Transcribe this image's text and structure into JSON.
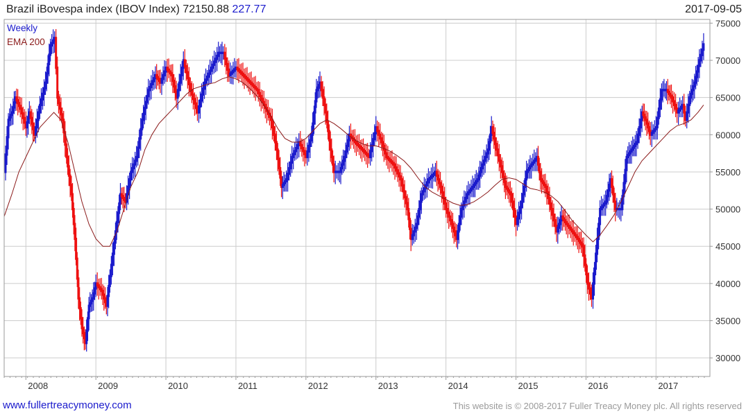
{
  "header": {
    "title": "Brazil iBovespa index (IBOV Index)",
    "last_value": "72150.88",
    "change": "227.77",
    "date": "2017-09-05"
  },
  "footer": {
    "site": "www.fullertreacymoney.com",
    "copyright": "This website is © 2008-2017 Fuller Treacy Money plc. All rights reserved"
  },
  "colors": {
    "up": "#1a1acc",
    "down": "#ee1111",
    "ema": "#8b1a1a",
    "grid": "#cccccc",
    "frame": "#999999",
    "text": "#333333"
  },
  "chart_data": {
    "type": "line",
    "legend": [
      {
        "name": "Weekly",
        "color": "#1a1acc"
      },
      {
        "name": "EMA 200",
        "color": "#8b1a1a"
      }
    ],
    "legend_position": "top-left",
    "x_domain": [
      2007.69,
      2017.77
    ],
    "ylim": [
      27500,
      75500
    ],
    "y_ticks": [
      30000,
      35000,
      40000,
      45000,
      50000,
      55000,
      60000,
      65000,
      70000,
      75000
    ],
    "x_ticks": [
      {
        "label": "2008",
        "value": 2008
      },
      {
        "label": "2009",
        "value": 2009
      },
      {
        "label": "2010",
        "value": 2010
      },
      {
        "label": "2011",
        "value": 2011
      },
      {
        "label": "2012",
        "value": 2012
      },
      {
        "label": "2013",
        "value": 2013
      },
      {
        "label": "2014",
        "value": 2014
      },
      {
        "label": "2015",
        "value": 2015
      },
      {
        "label": "2016",
        "value": 2016
      },
      {
        "label": "2017",
        "value": 2017
      }
    ],
    "grid": true,
    "series": [
      {
        "name": "Weekly",
        "x": [
          2007.69,
          2007.75,
          2007.8,
          2007.85,
          2007.92,
          2008.0,
          2008.05,
          2008.12,
          2008.2,
          2008.28,
          2008.35,
          2008.41,
          2008.45,
          2008.52,
          2008.58,
          2008.65,
          2008.7,
          2008.75,
          2008.8,
          2008.85,
          2008.9,
          2008.95,
          2009.0,
          2009.08,
          2009.15,
          2009.2,
          2009.28,
          2009.35,
          2009.42,
          2009.5,
          2009.58,
          2009.66,
          2009.75,
          2009.85,
          2009.92,
          2010.0,
          2010.08,
          2010.15,
          2010.25,
          2010.35,
          2010.45,
          2010.55,
          2010.65,
          2010.75,
          2010.82,
          2010.9,
          2011.0,
          2011.1,
          2011.2,
          2011.3,
          2011.4,
          2011.5,
          2011.58,
          2011.65,
          2011.72,
          2011.8,
          2011.9,
          2012.0,
          2012.08,
          2012.15,
          2012.2,
          2012.28,
          2012.35,
          2012.4,
          2012.48,
          2012.55,
          2012.62,
          2012.7,
          2012.8,
          2012.9,
          2013.0,
          2013.08,
          2013.15,
          2013.25,
          2013.35,
          2013.45,
          2013.5,
          2013.58,
          2013.65,
          2013.75,
          2013.85,
          2013.92,
          2014.0,
          2014.08,
          2014.15,
          2014.22,
          2014.3,
          2014.38,
          2014.45,
          2014.52,
          2014.6,
          2014.65,
          2014.72,
          2014.8,
          2014.85,
          2014.92,
          2015.0,
          2015.08,
          2015.15,
          2015.22,
          2015.3,
          2015.35,
          2015.42,
          2015.5,
          2015.58,
          2015.65,
          2015.72,
          2015.8,
          2015.88,
          2015.95,
          2016.02,
          2016.08,
          2016.12,
          2016.2,
          2016.28,
          2016.35,
          2016.42,
          2016.5,
          2016.58,
          2016.65,
          2016.72,
          2016.8,
          2016.85,
          2016.92,
          2017.0,
          2017.08,
          2017.15,
          2017.22,
          2017.3,
          2017.38,
          2017.42,
          2017.48,
          2017.55,
          2017.62,
          2017.68
        ],
        "y": [
          55000,
          62000,
          63000,
          65000,
          63500,
          61000,
          63000,
          60000,
          64000,
          67000,
          72000,
          73000,
          65000,
          62000,
          57000,
          52000,
          46000,
          38000,
          34000,
          32000,
          37000,
          38000,
          40000,
          39000,
          37000,
          41000,
          47000,
          52000,
          51000,
          55000,
          57000,
          62000,
          66000,
          68000,
          67000,
          69000,
          68000,
          65000,
          70000,
          66000,
          63000,
          67000,
          69000,
          71000,
          71000,
          68000,
          69000,
          68000,
          67000,
          66000,
          64000,
          62000,
          58000,
          53000,
          54000,
          57000,
          59000,
          57000,
          60000,
          66000,
          67000,
          63000,
          58000,
          55000,
          55000,
          57000,
          60000,
          59000,
          58000,
          57000,
          61000,
          59000,
          57000,
          56000,
          54000,
          50000,
          46000,
          48000,
          52000,
          54000,
          55000,
          53000,
          50000,
          48000,
          46000,
          50000,
          52000,
          53000,
          54000,
          56000,
          58000,
          61000,
          58000,
          55000,
          53000,
          52000,
          48000,
          51000,
          55000,
          56000,
          57000,
          54000,
          53000,
          50000,
          47000,
          49000,
          48000,
          47000,
          46000,
          45000,
          40000,
          38000,
          42000,
          50000,
          51000,
          54000,
          50000,
          50000,
          57000,
          58000,
          59000,
          63000,
          62000,
          60000,
          61000,
          66000,
          66000,
          65000,
          63000,
          64000,
          62000,
          65000,
          67000,
          70000,
          72150
        ]
      },
      {
        "name": "EMA 200",
        "x": [
          2007.69,
          2007.8,
          2007.9,
          2008.0,
          2008.1,
          2008.2,
          2008.3,
          2008.4,
          2008.5,
          2008.6,
          2008.7,
          2008.8,
          2008.9,
          2009.0,
          2009.1,
          2009.2,
          2009.3,
          2009.4,
          2009.5,
          2009.6,
          2009.7,
          2009.8,
          2009.9,
          2010.0,
          2010.1,
          2010.2,
          2010.3,
          2010.4,
          2010.5,
          2010.6,
          2010.7,
          2010.8,
          2010.9,
          2011.0,
          2011.1,
          2011.2,
          2011.3,
          2011.4,
          2011.5,
          2011.6,
          2011.7,
          2011.8,
          2011.9,
          2012.0,
          2012.1,
          2012.2,
          2012.3,
          2012.4,
          2012.5,
          2012.6,
          2012.7,
          2012.8,
          2012.9,
          2013.0,
          2013.1,
          2013.2,
          2013.3,
          2013.4,
          2013.5,
          2013.6,
          2013.7,
          2013.8,
          2013.9,
          2014.0,
          2014.1,
          2014.2,
          2014.3,
          2014.4,
          2014.5,
          2014.6,
          2014.7,
          2014.8,
          2014.9,
          2015.0,
          2015.1,
          2015.2,
          2015.3,
          2015.4,
          2015.5,
          2015.6,
          2015.7,
          2015.8,
          2015.9,
          2016.0,
          2016.1,
          2016.2,
          2016.3,
          2016.4,
          2016.5,
          2016.6,
          2016.7,
          2016.8,
          2016.9,
          2017.0,
          2017.1,
          2017.2,
          2017.3,
          2017.4,
          2017.5,
          2017.6,
          2017.68
        ],
        "y": [
          49000,
          52000,
          55000,
          57000,
          59000,
          61000,
          62000,
          63000,
          62000,
          59000,
          55000,
          51000,
          48000,
          46000,
          45000,
          45000,
          47000,
          50000,
          53000,
          55000,
          58000,
          60000,
          61500,
          62500,
          63500,
          64500,
          65500,
          66200,
          66500,
          66800,
          67000,
          67500,
          67800,
          67500,
          67000,
          66200,
          65200,
          64000,
          62500,
          60800,
          59500,
          59000,
          59000,
          59500,
          60500,
          61500,
          62000,
          61500,
          60800,
          60000,
          59300,
          58800,
          58500,
          58500,
          58200,
          57800,
          57200,
          56500,
          55500,
          54200,
          53000,
          52300,
          51800,
          51300,
          50800,
          50500,
          50600,
          51000,
          51600,
          52300,
          53200,
          54000,
          54200,
          54000,
          53400,
          52800,
          52600,
          52300,
          51800,
          51000,
          49800,
          48500,
          47500,
          46500,
          45600,
          46500,
          47800,
          49200,
          51000,
          53000,
          55000,
          56500,
          57500,
          58500,
          59500,
          60500,
          61200,
          61500,
          62000,
          63000,
          64000
        ]
      }
    ]
  }
}
